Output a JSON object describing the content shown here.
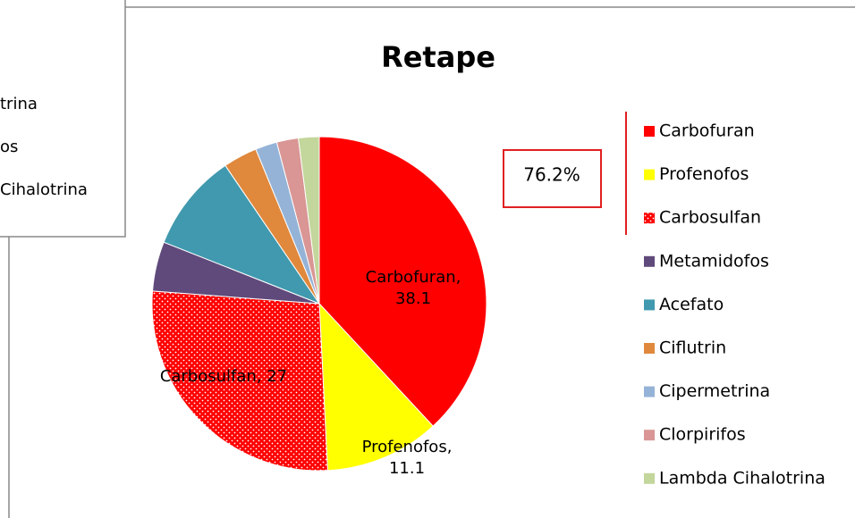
{
  "background_window": {
    "items": [
      "trina",
      "os",
      "Cihalotrina"
    ]
  },
  "chart_data": {
    "type": "pie",
    "title": "Retape",
    "categories": [
      "Carbofuran",
      "Profenofos",
      "Carbosulfan",
      "Metamidofos",
      "Acefato",
      "Ciflutrin",
      "Cipermetrina",
      "Clorpirifos",
      "Lambda Cihalotrina"
    ],
    "values": [
      38.1,
      11.1,
      27,
      4.8,
      9.5,
      3.3,
      2.1,
      2.1,
      2.0
    ],
    "value_labels": [
      "Carbofuran, 38.1",
      "Profenofos, 11.1",
      "Carbosulfan, 27",
      null,
      null,
      null,
      null,
      null,
      null
    ],
    "colors": [
      "#ff0000",
      "#ffff00",
      "#ff0000",
      "#604a7b",
      "#4099ae",
      "#e0883c",
      "#95b3d7",
      "#d99694",
      "#c3d69b"
    ],
    "patterns": [
      null,
      null,
      "dots",
      null,
      null,
      null,
      null,
      null,
      null
    ],
    "annotation": "76.2%",
    "legend": "right"
  }
}
